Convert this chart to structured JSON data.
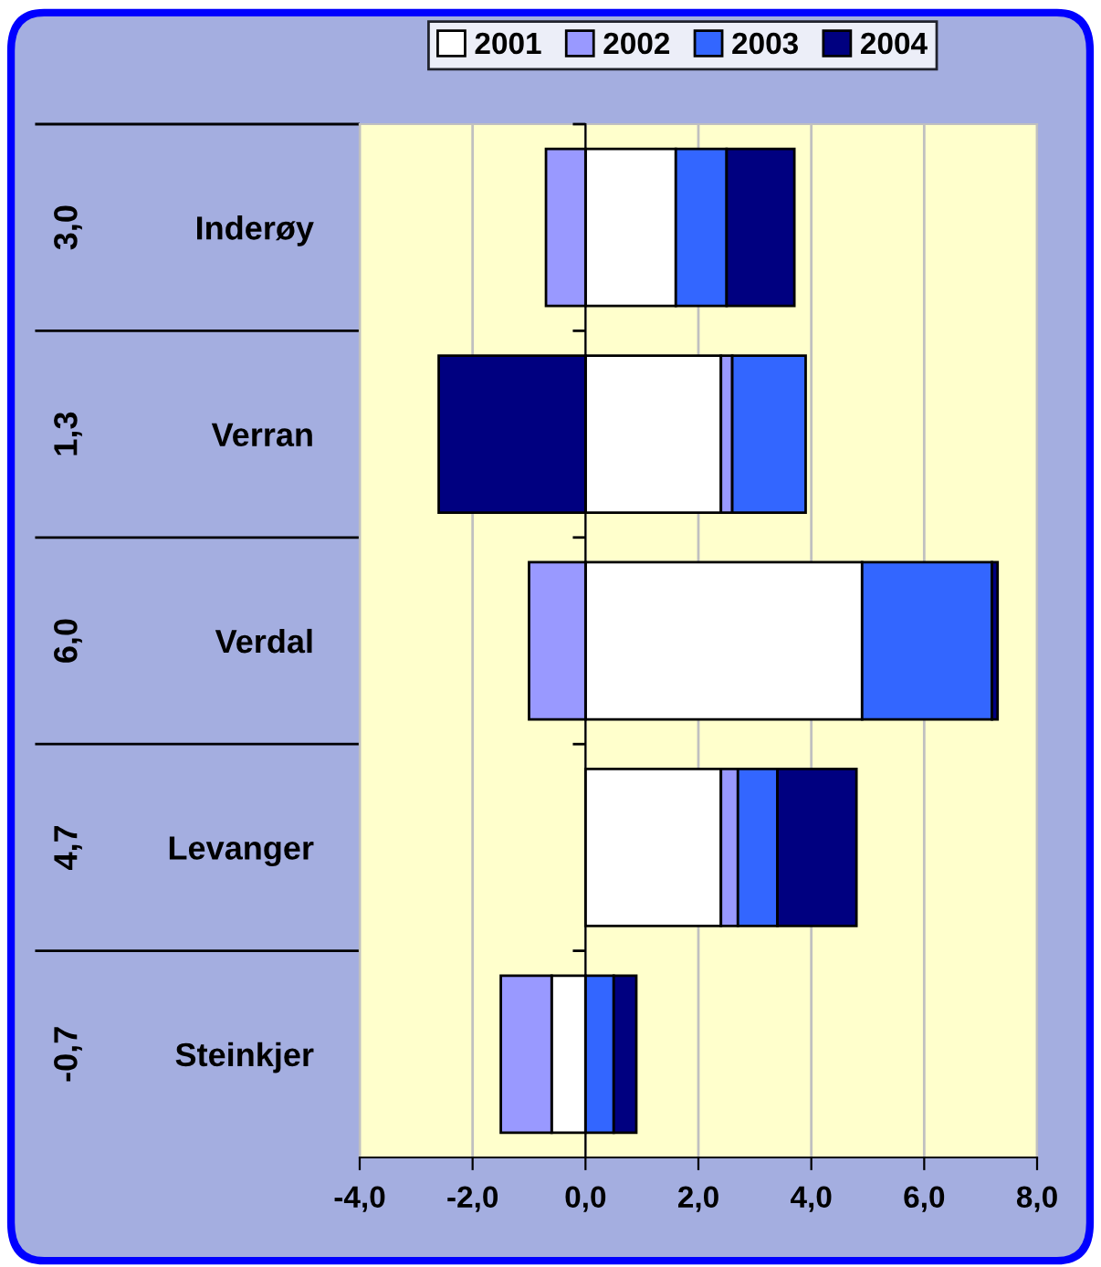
{
  "chart_data": {
    "type": "bar",
    "orientation": "horizontal",
    "stacked": true,
    "categories": [
      "Inderøy",
      "Verran",
      "Verdal",
      "Levanger",
      "Steinkjer"
    ],
    "series": [
      {
        "name": "2001",
        "color": "#ffffff",
        "values": [
          1.6,
          2.4,
          4.9,
          2.4,
          -0.6
        ]
      },
      {
        "name": "2002",
        "color": "#9999ff",
        "values": [
          -0.7,
          0.2,
          -1.0,
          0.3,
          -0.9
        ]
      },
      {
        "name": "2003",
        "color": "#3366ff",
        "values": [
          0.9,
          1.3,
          2.3,
          0.7,
          0.5
        ]
      },
      {
        "name": "2004",
        "color": "#000080",
        "values": [
          1.2,
          -2.6,
          0.1,
          1.4,
          0.4
        ]
      }
    ],
    "annotations": [
      "3,0",
      "1,3",
      "6,0",
      "4,7",
      "-0,7"
    ],
    "xlim": [
      -4,
      8
    ],
    "xticks": [
      {
        "value": -4,
        "label": "-4,0"
      },
      {
        "value": -2,
        "label": "-2,0"
      },
      {
        "value": 0,
        "label": "0,0"
      },
      {
        "value": 2,
        "label": "2,0"
      },
      {
        "value": 4,
        "label": "4,0"
      },
      {
        "value": 6,
        "label": "6,0"
      },
      {
        "value": 8,
        "label": "8,0"
      }
    ],
    "grid": "x",
    "legend": "top"
  }
}
